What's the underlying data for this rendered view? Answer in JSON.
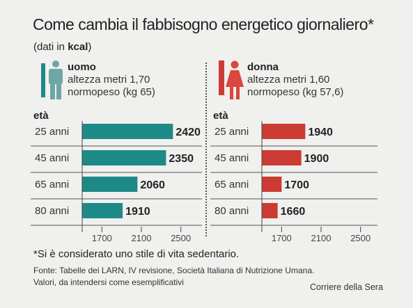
{
  "header": {
    "title": "Come cambia il fabbisogno energetico giornaliero*",
    "subtitle_prefix": "(dati in ",
    "subtitle_unit": "kcal",
    "subtitle_suffix": ")"
  },
  "age_header": "età",
  "footnote": "*Si è considerato uno stile di vita sedentario.",
  "source_line1": "Fonte: Tabelle dei LARN, IV revisione,  Società Italiana di Nutrizione Umana.",
  "source_line2": "Valori, da intendersi come esemplificativi",
  "credit": "Corriere della Sera",
  "colors": {
    "male": "#1e8a87",
    "female": "#cc3b33",
    "icon_male": "#6ea6a8",
    "icon_female": "#d9473d"
  },
  "chart_data": [
    {
      "type": "bar",
      "orientation": "horizontal",
      "title": "uomo",
      "details": [
        "altezza metri 1,70",
        "normopeso (kg 65)"
      ],
      "categories": [
        "25 anni",
        "45 anni",
        "65 anni",
        "80 anni"
      ],
      "values": [
        2420,
        2350,
        2060,
        1910
      ],
      "value_labels": [
        "2420",
        "2350",
        "2060",
        "1910"
      ],
      "xlim": [
        1500,
        2700
      ],
      "xticks": [
        1700,
        2100,
        2500
      ],
      "xtick_labels": [
        "1700",
        "2100",
        "2500"
      ],
      "icon": "male-figure-icon",
      "color": "#1e8a87"
    },
    {
      "type": "bar",
      "orientation": "horizontal",
      "title": "donna",
      "details": [
        "altezza metri 1,60",
        "normopeso (kg 57,6)"
      ],
      "categories": [
        "25 anni",
        "45 anni",
        "65 anni",
        "80 anni"
      ],
      "values": [
        1940,
        1900,
        1700,
        1660
      ],
      "value_labels": [
        "1940",
        "1900",
        "1700",
        "1660"
      ],
      "xlim": [
        1500,
        2700
      ],
      "xticks": [
        1700,
        2100,
        2500
      ],
      "xtick_labels": [
        "1700",
        "2100",
        "2500"
      ],
      "icon": "female-figure-icon",
      "color": "#cc3b33"
    }
  ]
}
